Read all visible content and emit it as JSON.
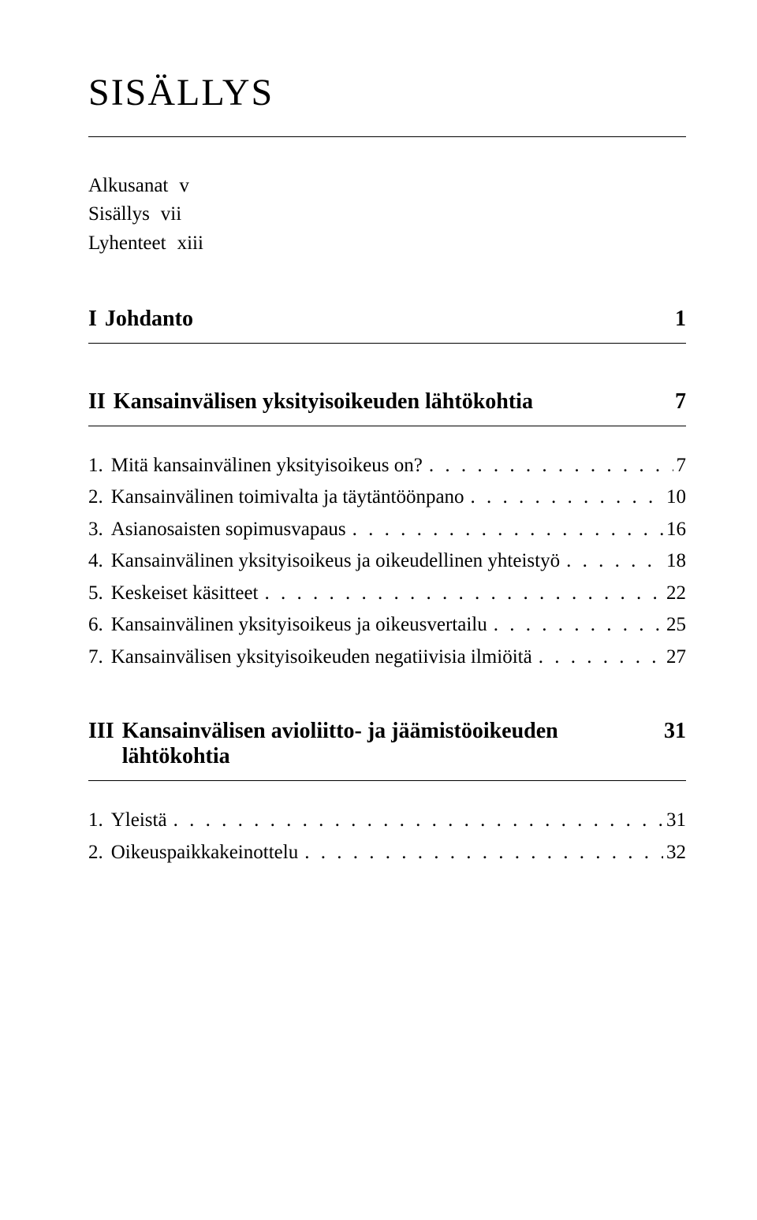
{
  "title": "SISÄLLYS",
  "frontMatter": [
    {
      "label": "Alkusanat",
      "page": "v"
    },
    {
      "label": "Sisällys",
      "page": "vii"
    },
    {
      "label": "Lyhenteet",
      "page": "xiii"
    }
  ],
  "sections": [
    {
      "num": "I",
      "title": "Johdanto",
      "page": "1",
      "entries": []
    },
    {
      "num": "II",
      "title": "Kansainvälisen yksityisoikeuden lähtökohtia",
      "page": "7",
      "entries": [
        {
          "num": "1.",
          "label": "Mitä kansainvälinen yksityisoikeus on?",
          "page": "7"
        },
        {
          "num": "2.",
          "label": "Kansainvälinen toimivalta ja täytäntöönpano",
          "page": "10"
        },
        {
          "num": "3.",
          "label": "Asianosaisten sopimusvapaus",
          "page": "16"
        },
        {
          "num": "4.",
          "label": "Kansainvälinen yksityisoikeus ja oikeudellinen yhteistyö",
          "page": "18"
        },
        {
          "num": "5.",
          "label": "Keskeiset käsitteet",
          "page": "22"
        },
        {
          "num": "6.",
          "label": "Kansainvälinen yksityisoikeus ja oikeusvertailu",
          "page": "25"
        },
        {
          "num": "7.",
          "label": "Kansainvälisen yksityisoikeuden negatiivisia ilmiöitä",
          "page": "27"
        }
      ]
    },
    {
      "num": "III",
      "title": "Kansainvälisen avioliitto- ja jäämistöoikeuden lähtökohtia",
      "page": "31",
      "entries": [
        {
          "num": "1.",
          "label": "Yleistä",
          "page": "31"
        },
        {
          "num": "2.",
          "label": "Oikeuspaikkakeinottelu",
          "page": "32"
        }
      ]
    }
  ],
  "style": {
    "background": "#ffffff",
    "textColor": "#000000",
    "titleFontSize": 48,
    "sectionHeadFontSize": 28,
    "entryFontSize": 25
  }
}
